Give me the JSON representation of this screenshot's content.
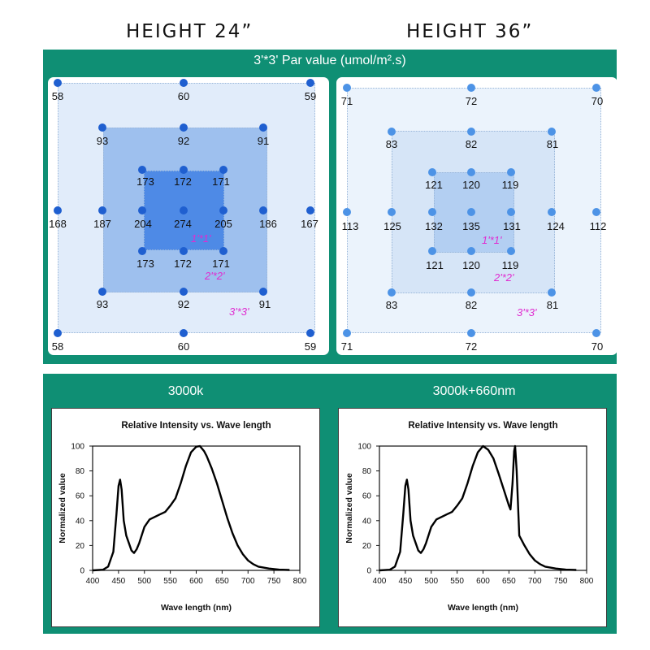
{
  "headings": {
    "left": "HEIGHT  24”",
    "right": "HEIGHT  36”"
  },
  "par": {
    "title": "3'*3' Par value (umol/m².s)",
    "zones": [
      "1'*1'",
      "2'*2'",
      "3'*3'"
    ],
    "height24": {
      "outer": {
        "top": [
          "58",
          "60",
          "59"
        ],
        "middle": [
          "168",
          "167"
        ],
        "bottom": [
          "58",
          "60",
          "59"
        ]
      },
      "mid": {
        "top": [
          "93",
          "92",
          "91"
        ],
        "middle": [
          "187",
          "186"
        ],
        "bottom": [
          "93",
          "92",
          "91"
        ]
      },
      "inner": {
        "top": [
          "173",
          "172",
          "171"
        ],
        "middle": [
          "204",
          "274",
          "205"
        ],
        "bottom": [
          "173",
          "172",
          "171"
        ]
      }
    },
    "height36": {
      "outer": {
        "top": [
          "71",
          "72",
          "70"
        ],
        "middle": [
          "113",
          "112"
        ],
        "bottom": [
          "71",
          "72",
          "70"
        ]
      },
      "mid": {
        "top": [
          "83",
          "82",
          "81"
        ],
        "middle": [
          "125",
          "124"
        ],
        "bottom": [
          "83",
          "82",
          "81"
        ]
      },
      "inner": {
        "top": [
          "121",
          "120",
          "119"
        ],
        "middle": [
          "132",
          "135",
          "131"
        ],
        "bottom": [
          "121",
          "120",
          "119"
        ]
      }
    }
  },
  "spectrum": {
    "left_label": "3000k",
    "right_label": "3000k+660nm"
  },
  "chart_data": [
    {
      "type": "line",
      "title": "Relative Intensity vs. Wave length",
      "xlabel": "Wave length (nm)",
      "ylabel": "Normalized value",
      "xlim": [
        400,
        800
      ],
      "ylim": [
        0,
        100
      ],
      "xticks": [
        400,
        450,
        500,
        550,
        600,
        650,
        700,
        750,
        800
      ],
      "yticks": [
        0,
        20,
        40,
        60,
        80,
        100
      ],
      "series": [
        {
          "name": "3000k",
          "x": [
            400,
            420,
            430,
            440,
            446,
            450,
            453,
            456,
            460,
            465,
            470,
            475,
            480,
            485,
            490,
            500,
            510,
            520,
            530,
            540,
            550,
            560,
            570,
            580,
            590,
            600,
            607,
            615,
            620,
            630,
            640,
            650,
            660,
            670,
            680,
            690,
            700,
            710,
            720,
            740,
            760,
            780
          ],
          "y": [
            0,
            0.5,
            3,
            15,
            45,
            68,
            73,
            65,
            40,
            28,
            22,
            16,
            14,
            17,
            22,
            35,
            41,
            43,
            45,
            47,
            52,
            58,
            70,
            84,
            95,
            99.5,
            100,
            96,
            92,
            82,
            70,
            56,
            42,
            30,
            20,
            13,
            8,
            5,
            3,
            1.5,
            0.6,
            0.3
          ]
        }
      ]
    },
    {
      "type": "line",
      "title": "Relative Intensity vs. Wave length",
      "xlabel": "Wave length (nm)",
      "ylabel": "Normalized value",
      "xlim": [
        400,
        800
      ],
      "ylim": [
        0,
        100
      ],
      "xticks": [
        400,
        450,
        500,
        550,
        600,
        650,
        700,
        750,
        800
      ],
      "yticks": [
        0,
        20,
        40,
        60,
        80,
        100
      ],
      "series": [
        {
          "name": "3000k+660nm",
          "x": [
            400,
            420,
            430,
            440,
            446,
            450,
            453,
            456,
            460,
            465,
            470,
            475,
            480,
            485,
            490,
            500,
            510,
            520,
            530,
            540,
            550,
            560,
            570,
            580,
            590,
            600,
            610,
            620,
            630,
            640,
            650,
            653,
            657,
            660,
            662,
            665,
            670,
            680,
            690,
            700,
            710,
            720,
            740,
            760,
            780
          ],
          "y": [
            0,
            0.5,
            3,
            15,
            45,
            68,
            73,
            65,
            40,
            28,
            22,
            16,
            14,
            17,
            22,
            35,
            41,
            43,
            45,
            47,
            52,
            58,
            70,
            84,
            95,
            100,
            97,
            90,
            78,
            65,
            52,
            49,
            70,
            96,
            100,
            80,
            28,
            20,
            13,
            8,
            5,
            3,
            1.5,
            0.6,
            0.3
          ]
        }
      ]
    }
  ]
}
